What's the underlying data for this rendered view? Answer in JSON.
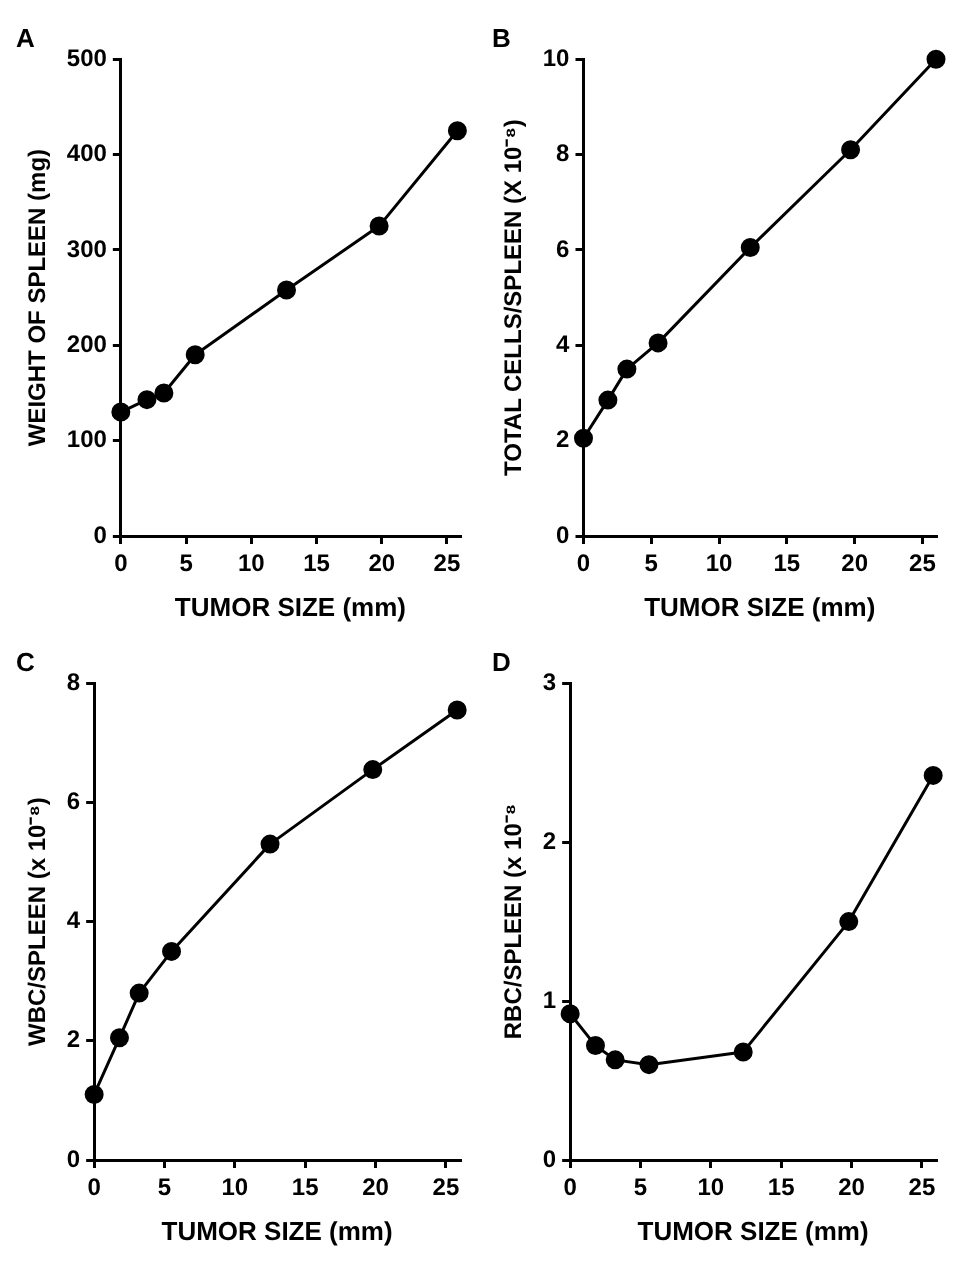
{
  "chart_data": [
    {
      "type": "line",
      "title": "A",
      "xlabel": "TUMOR SIZE (mm)",
      "ylabel": "WEIGHT OF SPLEEN (mg)",
      "xlim": [
        0,
        26
      ],
      "xticks": [
        0,
        5,
        10,
        15,
        20,
        25
      ],
      "ylim": [
        0,
        500
      ],
      "yticks": [
        0,
        100,
        200,
        300,
        400,
        500
      ],
      "grid": false,
      "legend": false,
      "marker": "circle",
      "line_style": "solid",
      "series": [
        {
          "color": "#000000",
          "x": [
            0,
            2,
            3.3,
            5.7,
            12.7,
            19.8,
            25.8
          ],
          "values": [
            130,
            143,
            150,
            190,
            258,
            325,
            425
          ]
        }
      ]
    },
    {
      "type": "line",
      "title": "B",
      "xlabel": "TUMOR SIZE (mm)",
      "ylabel": "TOTAL CELLS/SPLEEN (X 10⁻⁸)",
      "xlim": [
        0,
        26
      ],
      "xticks": [
        0,
        5,
        10,
        15,
        20,
        25
      ],
      "ylim": [
        0,
        10
      ],
      "yticks": [
        0,
        2,
        4,
        6,
        8,
        10
      ],
      "grid": false,
      "legend": false,
      "marker": "circle",
      "line_style": "solid",
      "series": [
        {
          "color": "#000000",
          "x": [
            0,
            1.8,
            3.2,
            5.5,
            12.3,
            19.7,
            26
          ],
          "values": [
            2.05,
            2.85,
            3.5,
            4.05,
            6.05,
            8.1,
            10
          ]
        }
      ]
    },
    {
      "type": "line",
      "title": "C",
      "xlabel": "TUMOR SIZE (mm)",
      "ylabel": "WBC/SPLEEN (x 10⁻⁸)",
      "xlim": [
        0,
        26
      ],
      "xticks": [
        0,
        5,
        10,
        15,
        20,
        25
      ],
      "ylim": [
        0,
        8
      ],
      "yticks": [
        0,
        2,
        4,
        6,
        8
      ],
      "grid": false,
      "legend": false,
      "marker": "circle",
      "line_style": "solid",
      "series": [
        {
          "color": "#000000",
          "x": [
            0,
            1.8,
            3.2,
            5.5,
            12.5,
            19.8,
            25.8
          ],
          "values": [
            1.1,
            2.05,
            2.8,
            3.5,
            5.3,
            6.55,
            7.55
          ]
        }
      ]
    },
    {
      "type": "line",
      "title": "D",
      "xlabel": "TUMOR SIZE (mm)",
      "ylabel": "RBC/SPLEEN (x 10⁻⁸",
      "xlim": [
        0,
        26
      ],
      "xticks": [
        0,
        5,
        10,
        15,
        20,
        25
      ],
      "ylim": [
        0,
        3
      ],
      "yticks": [
        0,
        1,
        2,
        3
      ],
      "grid": false,
      "legend": false,
      "marker": "circle",
      "line_style": "solid",
      "series": [
        {
          "color": "#000000",
          "x": [
            0,
            1.8,
            3.2,
            5.6,
            12.3,
            19.8,
            25.8
          ],
          "values": [
            0.92,
            0.72,
            0.63,
            0.6,
            0.68,
            1.5,
            2.42
          ]
        }
      ]
    }
  ]
}
